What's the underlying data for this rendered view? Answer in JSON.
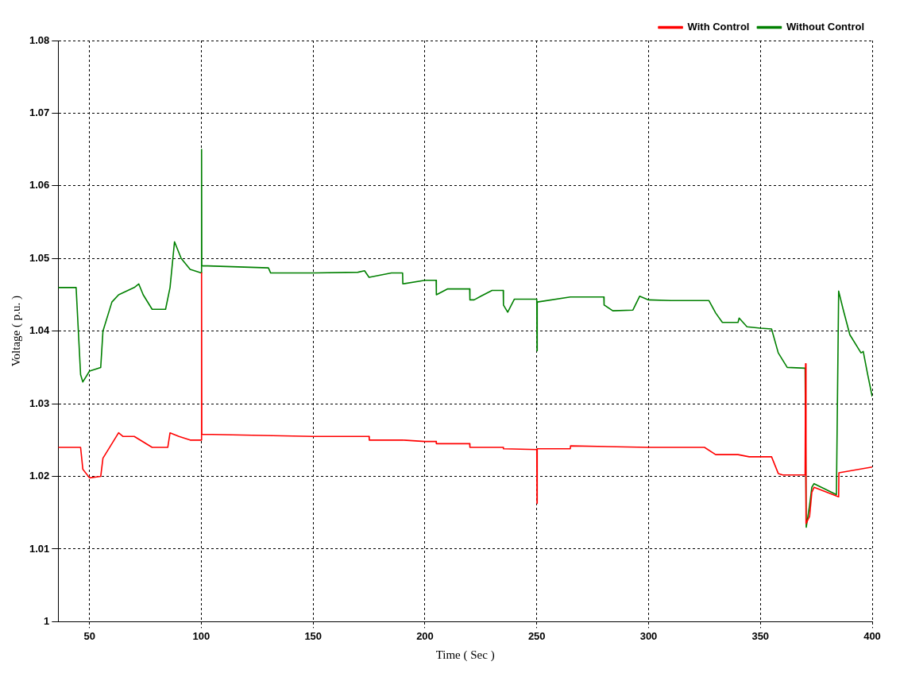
{
  "chart_data": {
    "type": "line",
    "xlabel": "Time ( Sec )",
    "ylabel": "Voltage ( p.u. )",
    "xlim": [
      36,
      400
    ],
    "ylim": [
      1,
      1.08
    ],
    "xticks": [
      50,
      100,
      150,
      200,
      250,
      300,
      350,
      400
    ],
    "yticks": [
      1,
      1.01,
      1.02,
      1.03,
      1.04,
      1.05,
      1.06,
      1.07,
      1.08
    ],
    "grid": true,
    "legend": "top right",
    "marker": "none",
    "line_style": "solid",
    "series": [
      {
        "name": "With Control",
        "color": "#ff0000",
        "x": [
          36,
          46,
          47,
          50,
          55,
          56,
          60,
          63,
          65,
          70,
          78,
          85,
          86,
          90,
          95,
          100,
          100.1,
          100.2,
          150,
          175,
          175.1,
          190,
          200,
          205,
          205.1,
          220,
          220.1,
          235,
          235.1,
          250,
          250.1,
          250.2,
          265,
          265.1,
          300,
          325,
          330,
          340,
          345,
          355,
          358,
          360,
          370,
          370.2,
          370.4,
          372,
          373,
          374,
          385,
          385.1,
          400
        ],
        "values": [
          1.024,
          1.024,
          1.021,
          1.0198,
          1.02,
          1.0225,
          1.0245,
          1.026,
          1.0255,
          1.0255,
          1.024,
          1.024,
          1.026,
          1.0255,
          1.025,
          1.025,
          1.048,
          1.0258,
          1.0255,
          1.0255,
          1.025,
          1.025,
          1.0248,
          1.0248,
          1.0245,
          1.0245,
          1.024,
          1.024,
          1.0238,
          1.0237,
          1.0163,
          1.0238,
          1.0238,
          1.0242,
          1.024,
          1.024,
          1.023,
          1.023,
          1.0227,
          1.0227,
          1.0204,
          1.0202,
          1.0202,
          1.0355,
          1.0135,
          1.0145,
          1.0178,
          1.0185,
          1.0172,
          1.0205,
          1.0213
        ]
      },
      {
        "name": "Without Control",
        "color": "#008000",
        "x": [
          36,
          44,
          46,
          47,
          50,
          55,
          56,
          60,
          63,
          70,
          72,
          74,
          78,
          84,
          86,
          88,
          91,
          95,
          100,
          100.1,
          100.2,
          130,
          131,
          150,
          170,
          173,
          175,
          185,
          190,
          190.1,
          200,
          205,
          205.1,
          210,
          220,
          220.1,
          222,
          225,
          230,
          235,
          235.1,
          237,
          240,
          250,
          250.1,
          250.2,
          265,
          280,
          280.1,
          284,
          293,
          296,
          300,
          310,
          327,
          330,
          333,
          340,
          340.5,
          344,
          350,
          355,
          358,
          362,
          370,
          370.5,
          372,
          373,
          374,
          384,
          385,
          387,
          390,
          395,
          396,
          398,
          400
        ],
        "values": [
          1.046,
          1.046,
          1.034,
          1.033,
          1.0345,
          1.035,
          1.04,
          1.044,
          1.045,
          1.046,
          1.0465,
          1.045,
          1.043,
          1.043,
          1.046,
          1.0523,
          1.05,
          1.0485,
          1.048,
          1.065,
          1.049,
          1.0487,
          1.048,
          1.048,
          1.0481,
          1.0483,
          1.0474,
          1.048,
          1.048,
          1.0465,
          1.047,
          1.047,
          1.045,
          1.0458,
          1.0458,
          1.0443,
          1.0443,
          1.0448,
          1.0456,
          1.0456,
          1.0436,
          1.0426,
          1.0444,
          1.0444,
          1.0373,
          1.044,
          1.0447,
          1.0447,
          1.0436,
          1.0428,
          1.0429,
          1.0448,
          1.0443,
          1.0442,
          1.0442,
          1.0425,
          1.0412,
          1.0412,
          1.0418,
          1.0406,
          1.0404,
          1.0403,
          1.037,
          1.035,
          1.0349,
          1.013,
          1.016,
          1.0185,
          1.019,
          1.0175,
          1.0455,
          1.043,
          1.0395,
          1.037,
          1.0372,
          1.034,
          1.031
        ]
      }
    ]
  }
}
